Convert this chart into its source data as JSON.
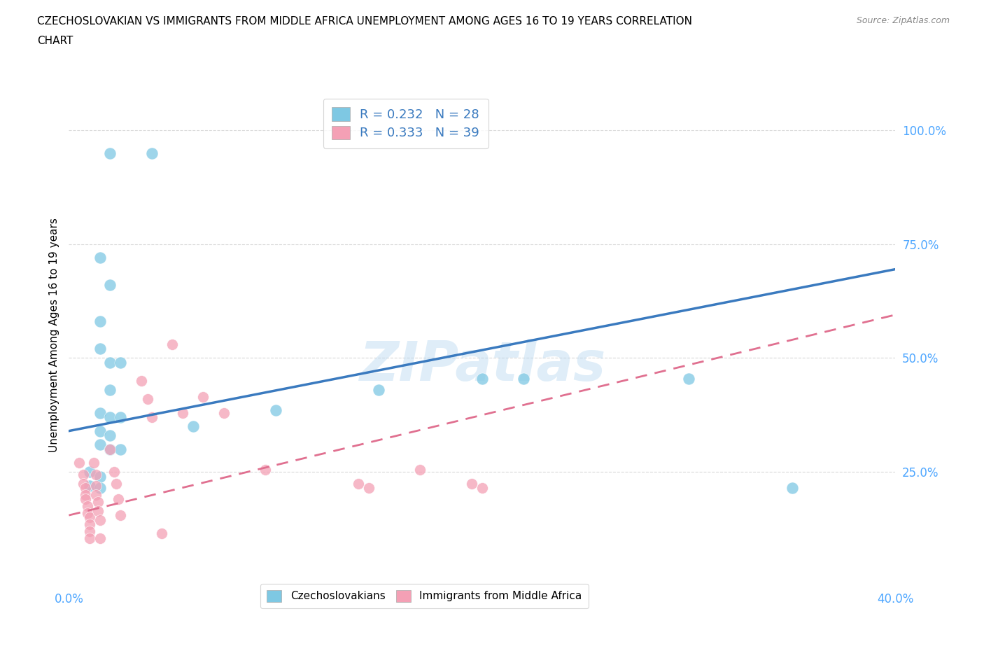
{
  "title": "CZECHOSLOVAKIAN VS IMMIGRANTS FROM MIDDLE AFRICA UNEMPLOYMENT AMONG AGES 16 TO 19 YEARS CORRELATION\nCHART",
  "source": "Source: ZipAtlas.com",
  "ylabel": "Unemployment Among Ages 16 to 19 years",
  "watermark": "ZIPatlas",
  "blue_label": "Czechoslovakians",
  "pink_label": "Immigrants from Middle Africa",
  "blue_R": 0.232,
  "blue_N": 28,
  "pink_R": 0.333,
  "pink_N": 39,
  "blue_color": "#7ec8e3",
  "pink_color": "#f4a0b5",
  "blue_line_color": "#3a7abf",
  "pink_line_color": "#e07090",
  "background_color": "#ffffff",
  "grid_color": "#d0d0d0",
  "ytick_color": "#4da6ff",
  "xtick_color": "#4da6ff",
  "blue_dots": [
    [
      0.02,
      0.95
    ],
    [
      0.04,
      0.95
    ],
    [
      0.015,
      0.72
    ],
    [
      0.02,
      0.66
    ],
    [
      0.015,
      0.58
    ],
    [
      0.015,
      0.52
    ],
    [
      0.02,
      0.49
    ],
    [
      0.025,
      0.49
    ],
    [
      0.02,
      0.43
    ],
    [
      0.015,
      0.38
    ],
    [
      0.02,
      0.37
    ],
    [
      0.025,
      0.37
    ],
    [
      0.015,
      0.34
    ],
    [
      0.02,
      0.33
    ],
    [
      0.015,
      0.31
    ],
    [
      0.02,
      0.3
    ],
    [
      0.025,
      0.3
    ],
    [
      0.01,
      0.25
    ],
    [
      0.015,
      0.24
    ],
    [
      0.01,
      0.22
    ],
    [
      0.015,
      0.215
    ],
    [
      0.06,
      0.35
    ],
    [
      0.1,
      0.385
    ],
    [
      0.15,
      0.43
    ],
    [
      0.2,
      0.455
    ],
    [
      0.22,
      0.455
    ],
    [
      0.35,
      0.215
    ],
    [
      0.3,
      0.455
    ]
  ],
  "pink_dots": [
    [
      0.005,
      0.27
    ],
    [
      0.007,
      0.245
    ],
    [
      0.007,
      0.225
    ],
    [
      0.008,
      0.215
    ],
    [
      0.008,
      0.2
    ],
    [
      0.008,
      0.19
    ],
    [
      0.009,
      0.175
    ],
    [
      0.009,
      0.16
    ],
    [
      0.01,
      0.15
    ],
    [
      0.01,
      0.135
    ],
    [
      0.01,
      0.12
    ],
    [
      0.01,
      0.105
    ],
    [
      0.012,
      0.27
    ],
    [
      0.013,
      0.245
    ],
    [
      0.013,
      0.22
    ],
    [
      0.013,
      0.2
    ],
    [
      0.014,
      0.185
    ],
    [
      0.014,
      0.165
    ],
    [
      0.015,
      0.145
    ],
    [
      0.015,
      0.105
    ],
    [
      0.02,
      0.3
    ],
    [
      0.022,
      0.25
    ],
    [
      0.023,
      0.225
    ],
    [
      0.024,
      0.19
    ],
    [
      0.025,
      0.155
    ],
    [
      0.035,
      0.45
    ],
    [
      0.038,
      0.41
    ],
    [
      0.04,
      0.37
    ],
    [
      0.05,
      0.53
    ],
    [
      0.055,
      0.38
    ],
    [
      0.065,
      0.415
    ],
    [
      0.075,
      0.38
    ],
    [
      0.095,
      0.255
    ],
    [
      0.14,
      0.225
    ],
    [
      0.145,
      0.215
    ],
    [
      0.17,
      0.255
    ],
    [
      0.195,
      0.225
    ],
    [
      0.2,
      0.215
    ],
    [
      0.045,
      0.115
    ]
  ],
  "blue_trend": [
    0.0,
    0.4,
    0.34,
    0.695
  ],
  "pink_trend": [
    0.0,
    0.4,
    0.155,
    0.595
  ],
  "xlim": [
    0.0,
    0.4
  ],
  "ylim": [
    0.0,
    1.1
  ],
  "yticks": [
    0.25,
    0.5,
    0.75,
    1.0
  ],
  "ytick_labels": [
    "25.0%",
    "50.0%",
    "75.0%",
    "100.0%"
  ],
  "xtick_positions": [
    0.0,
    0.1,
    0.2,
    0.3,
    0.4
  ],
  "xtick_labels": [
    "0.0%",
    "",
    "",
    "",
    "40.0%"
  ]
}
